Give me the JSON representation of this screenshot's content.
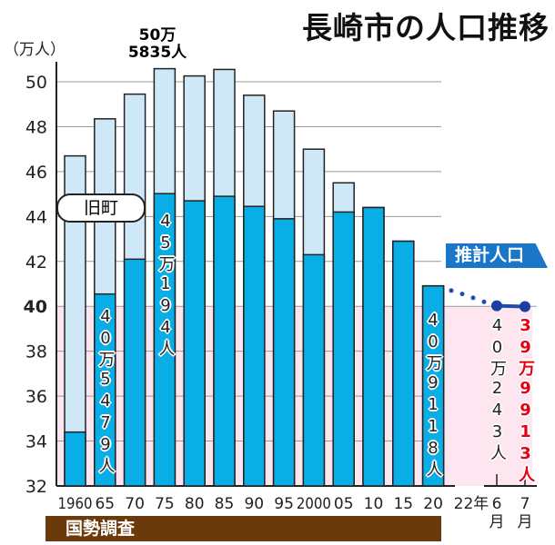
{
  "chart_data": {
    "type": "bar",
    "title": "長崎市の人口推移",
    "ylabel": "（万人）",
    "ylim": [
      32,
      51
    ],
    "yticks": [
      32,
      34,
      36,
      38,
      40,
      42,
      44,
      46,
      48,
      50
    ],
    "grid": true,
    "categories": [
      "1960",
      "65",
      "70",
      "75",
      "80",
      "85",
      "90",
      "95",
      "2000",
      "05",
      "10",
      "15",
      "20"
    ],
    "series": [
      {
        "name": "旧町",
        "values": [
          46.7,
          48.35,
          49.45,
          50.5835,
          50.26,
          50.55,
          49.4,
          48.7,
          47.0,
          45.5,
          44.4,
          42.9,
          40.9118
        ]
      },
      {
        "values": [
          34.4,
          40.5479,
          42.1,
          45.0194,
          44.7,
          44.9,
          44.45,
          43.9,
          42.3,
          44.2,
          44.4,
          42.9,
          40.9118
        ]
      }
    ],
    "estimate": {
      "label": "推計人口",
      "year_label": "22年",
      "points": [
        {
          "label": "6月",
          "value": 40.0243,
          "text": "40万243人"
        },
        {
          "label": "7月",
          "value": 39.9913,
          "text": "39万9913人"
        }
      ]
    },
    "annotations": {
      "peak": [
        "50万",
        "5835人"
      ],
      "kyu": "旧町",
      "v65": "40万5479人",
      "v75": "45万194人",
      "v20": "40万9118人"
    },
    "source_label": "国勢調査",
    "colors": {
      "total": "#cfe8f8",
      "city": "#0aaee6",
      "highlight": "#e60012",
      "census": "#6b3a0c",
      "estimate": "#1a76c8",
      "below40": "#fde6ef"
    }
  }
}
